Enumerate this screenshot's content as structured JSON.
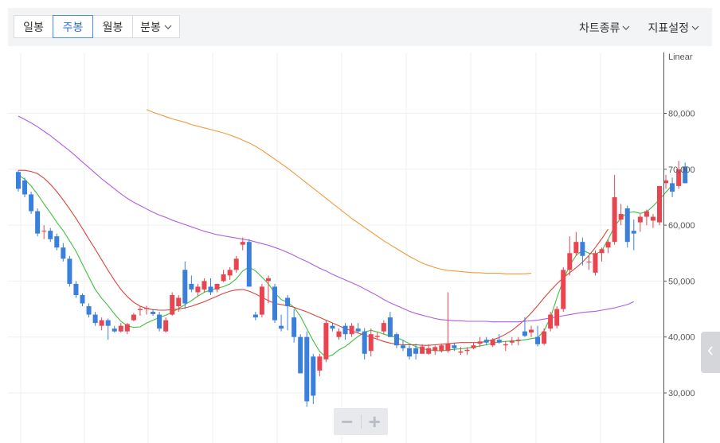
{
  "toolbar": {
    "tabs": [
      {
        "label": "일봉",
        "active": false
      },
      {
        "label": "주봉",
        "active": true
      },
      {
        "label": "월봉",
        "active": false
      },
      {
        "label": "분봉",
        "active": false,
        "dropdown": true
      }
    ],
    "menus": [
      {
        "label": "차트종류",
        "icon": "chevron-down-icon"
      },
      {
        "label": "지표설정",
        "icon": "chevron-down-icon"
      }
    ]
  },
  "zoom": {
    "minus_icon": "minus-icon",
    "plus_icon": "plus-icon"
  },
  "side_handle": {
    "icon": "chevron-left-icon"
  },
  "colors": {
    "up": "#e84550",
    "down": "#3a7fd9",
    "ma5": "#3fbf3f",
    "ma20": "#d9453b",
    "ma60": "#b05ce0",
    "ma120": "#ef9a3c",
    "grid": "#eef0f2",
    "axis": "#555555"
  },
  "chart_data": {
    "type": "candlestick",
    "scale_label": "Linear",
    "ylim": [
      25000,
      81000
    ],
    "yticks": [
      "30,000",
      "40,000",
      "50,000",
      "60,000",
      "70,000",
      "80,000"
    ],
    "ytick_values": [
      30000,
      40000,
      50000,
      60000,
      70000,
      80000
    ],
    "ohlc": [
      [
        69500,
        69800,
        66000,
        66500
      ],
      [
        68000,
        68500,
        65000,
        65500
      ],
      [
        65500,
        66000,
        62000,
        62500
      ],
      [
        62500,
        63000,
        58000,
        58500
      ],
      [
        59000,
        60000,
        57500,
        59000
      ],
      [
        59000,
        59500,
        57000,
        57500
      ],
      [
        58000,
        58500,
        55500,
        56000
      ],
      [
        56000,
        56800,
        53500,
        54000
      ],
      [
        54000,
        54500,
        49000,
        49500
      ],
      [
        49500,
        50000,
        47000,
        47500
      ],
      [
        47500,
        47800,
        45500,
        46000
      ],
      [
        45500,
        46000,
        43500,
        44000
      ],
      [
        44000,
        44500,
        42000,
        42500
      ],
      [
        42000,
        43500,
        41200,
        43000
      ],
      [
        43000,
        43300,
        39500,
        42000
      ],
      [
        41500,
        42000,
        40800,
        41000
      ],
      [
        41000,
        42500,
        40800,
        42000
      ],
      [
        41000,
        42500,
        40500,
        42300
      ],
      [
        43000,
        44300,
        42800,
        44000
      ],
      [
        44800,
        45500,
        43800,
        45000
      ],
      [
        45000,
        45600,
        44000,
        45200
      ],
      [
        44500,
        45000,
        43800,
        44100
      ],
      [
        44000,
        44500,
        41000,
        41500
      ],
      [
        41000,
        43500,
        40800,
        43000
      ],
      [
        44000,
        48000,
        43800,
        47500
      ],
      [
        45500,
        47500,
        44500,
        47000
      ],
      [
        52000,
        53500,
        45000,
        46000
      ],
      [
        49500,
        51000,
        48000,
        48500
      ],
      [
        48000,
        49500,
        47200,
        49000
      ],
      [
        48500,
        50500,
        48000,
        50000
      ],
      [
        49000,
        50500,
        47500,
        48000
      ],
      [
        48500,
        49500,
        48000,
        49500
      ],
      [
        50000,
        52000,
        49800,
        51200
      ],
      [
        51000,
        52500,
        50200,
        52000
      ],
      [
        52000,
        54500,
        51500,
        54000
      ],
      [
        56500,
        57800,
        55500,
        57000
      ],
      [
        57000,
        57500,
        49000,
        49000
      ],
      [
        44000,
        44500,
        43000,
        43500
      ],
      [
        44000,
        49500,
        43500,
        49000
      ],
      [
        50000,
        51000,
        46000,
        50500
      ],
      [
        49000,
        49500,
        42500,
        43000
      ],
      [
        42000,
        44000,
        41000,
        41500
      ],
      [
        47000,
        47500,
        41200,
        45500
      ],
      [
        43500,
        45000,
        39000,
        40000
      ],
      [
        40000,
        40500,
        33500,
        33500
      ],
      [
        40000,
        41000,
        27500,
        28500
      ],
      [
        36500,
        37000,
        28000,
        29500
      ],
      [
        34000,
        37000,
        33000,
        36500
      ],
      [
        36000,
        43000,
        35500,
        42500
      ],
      [
        42000,
        42500,
        41000,
        41500
      ],
      [
        40000,
        41500,
        39500,
        41000
      ],
      [
        42000,
        42500,
        39500,
        40500
      ],
      [
        40500,
        42500,
        40000,
        42000
      ],
      [
        41500,
        42500,
        40800,
        41000
      ],
      [
        41000,
        41600,
        36000,
        37000
      ],
      [
        37500,
        41500,
        36500,
        40500
      ],
      [
        40000,
        40800,
        39500,
        40200
      ],
      [
        41000,
        43000,
        40500,
        42500
      ],
      [
        43500,
        44500,
        40000,
        40000
      ],
      [
        40500,
        40800,
        38000,
        38500
      ],
      [
        38500,
        39500,
        37500,
        38000
      ],
      [
        38000,
        38500,
        36000,
        36500
      ],
      [
        38000,
        38800,
        36000,
        37000
      ],
      [
        37000,
        38700,
        37000,
        38300
      ],
      [
        37000,
        38700,
        36800,
        38000
      ],
      [
        37500,
        38500,
        36800,
        38200
      ],
      [
        37500,
        38800,
        37200,
        38500
      ],
      [
        37500,
        48000,
        37200,
        38800
      ],
      [
        38500,
        39000,
        37500,
        38000
      ],
      [
        37200,
        38200,
        36800,
        37400
      ],
      [
        37500,
        38200,
        36800,
        37700
      ],
      [
        38000,
        39000,
        37800,
        38500
      ],
      [
        38800,
        40000,
        38200,
        39200
      ],
      [
        39500,
        40000,
        38500,
        39000
      ],
      [
        38500,
        39800,
        38200,
        39500
      ],
      [
        39500,
        40500,
        38800,
        39000
      ],
      [
        38500,
        39300,
        37500,
        38700
      ],
      [
        39000,
        40000,
        38500,
        39300
      ],
      [
        39300,
        40000,
        38500,
        39500
      ],
      [
        41000,
        43500,
        40000,
        40200
      ],
      [
        40800,
        42000,
        40000,
        41300
      ],
      [
        40000,
        42000,
        38300,
        38700
      ],
      [
        38800,
        41500,
        38500,
        41000
      ],
      [
        41500,
        44500,
        41000,
        44000
      ],
      [
        42000,
        45500,
        41500,
        45000
      ],
      [
        45000,
        52500,
        44500,
        52000
      ],
      [
        52000,
        58000,
        51000,
        55000
      ],
      [
        55000,
        58800,
        54500,
        57000
      ],
      [
        57000,
        57800,
        52800,
        54500
      ],
      [
        53500,
        54500,
        52000,
        53500
      ],
      [
        51500,
        55500,
        51000,
        55000
      ],
      [
        55000,
        56000,
        53500,
        55700
      ],
      [
        56000,
        57500,
        55000,
        57000
      ],
      [
        57000,
        69000,
        56500,
        65000
      ],
      [
        61000,
        63800,
        60000,
        62000
      ],
      [
        63000,
        63500,
        56000,
        57000
      ],
      [
        59000,
        61000,
        55500,
        58500
      ],
      [
        60500,
        62000,
        58800,
        61500
      ],
      [
        61500,
        62800,
        60000,
        62500
      ],
      [
        60800,
        62000,
        59500,
        61500
      ],
      [
        60500,
        67000,
        60000,
        67000
      ],
      [
        67500,
        69000,
        66500,
        68000
      ],
      [
        67500,
        68500,
        65000,
        66000
      ],
      [
        67000,
        71500,
        66500,
        70000
      ],
      [
        70500,
        71200,
        67500,
        67500
      ]
    ],
    "ma": [
      {
        "period": 5,
        "color": "#3fbf3f",
        "values": [
          69000,
          68200,
          67000,
          65500,
          63800,
          62200,
          60500,
          59000,
          57200,
          55300,
          53000,
          50700,
          48500,
          46900,
          45600,
          44100,
          42800,
          42000,
          41700,
          41800,
          42500,
          43000,
          43500,
          43900,
          44400,
          45100,
          45800,
          46500,
          47300,
          48000,
          48400,
          48700,
          49000,
          49500,
          50400,
          51800,
          52500,
          51800,
          50700,
          49500,
          47900,
          46700,
          46200,
          45300,
          43700,
          41500,
          39300,
          37400,
          36400,
          36800,
          37700,
          38300,
          39200,
          40100,
          40900,
          41200,
          40900,
          40500,
          40200,
          39900,
          39400,
          38800,
          38300,
          37900,
          37700,
          37600,
          37500,
          37700,
          37800,
          37900,
          38000,
          38200,
          38400,
          38600,
          38900,
          39100,
          39200,
          39300,
          39300,
          39500,
          39700,
          39900,
          41100,
          43500,
          47000,
          50200,
          52800,
          54600,
          55500,
          55000,
          54800,
          55400,
          57500,
          59800,
          61300,
          62200,
          62400,
          62100,
          62400,
          63400,
          64600,
          65900,
          67200
        ]
      },
      {
        "period": 20,
        "color": "#d9453b",
        "values": [
          69800,
          69800,
          69600,
          69200,
          68400,
          67300,
          66000,
          64500,
          62900,
          61200,
          59400,
          57500,
          55700,
          53800,
          51900,
          50100,
          48500,
          47200,
          46200,
          45500,
          45100,
          44900,
          44800,
          44800,
          44900,
          45000,
          45200,
          45500,
          45900,
          46300,
          46800,
          47300,
          47800,
          48200,
          48400,
          48500,
          48200,
          47700,
          47100,
          46500,
          46000,
          45800,
          45600,
          45300,
          44900,
          44500,
          44000,
          43500,
          43000,
          42500,
          42000,
          41500,
          41100,
          40700,
          40300,
          40000,
          39600,
          39200,
          38900,
          38700,
          38600,
          38600,
          38600,
          38500,
          38500,
          38600,
          38700,
          38800,
          38900,
          39000,
          39000,
          39000,
          39000,
          39200,
          39500,
          39900,
          40500,
          41200,
          42100,
          43100,
          44300,
          45600,
          47000,
          48300,
          49500,
          50600,
          51500,
          52400,
          53400,
          54600,
          56000,
          57600,
          59300
        ]
      },
      {
        "period": 60,
        "color": "#b05ce0",
        "values": [
          79500,
          78900,
          78300,
          77600,
          76800,
          76000,
          75100,
          74200,
          73300,
          72300,
          71300,
          70300,
          69300,
          68300,
          67400,
          66500,
          65600,
          64800,
          64100,
          63500,
          62900,
          62300,
          61800,
          61400,
          60900,
          60500,
          60100,
          59700,
          59300,
          58900,
          58600,
          58300,
          58100,
          57900,
          57700,
          57500,
          57300,
          57000,
          56700,
          56400,
          56000,
          55600,
          55100,
          54600,
          54000,
          53500,
          52900,
          52300,
          51800,
          51200,
          50700,
          50200,
          49700,
          49200,
          48600,
          48000,
          47400,
          46700,
          46100,
          45600,
          45100,
          44600,
          44200,
          43900,
          43600,
          43300,
          43100,
          43000,
          42900,
          42900,
          42800,
          42800,
          42800,
          42800,
          42700,
          42700,
          42700,
          42700,
          42700,
          42800,
          42900,
          43000,
          43200,
          43400,
          43600,
          43800,
          44000,
          44200,
          44400,
          44500,
          44600,
          44800,
          45000,
          45200,
          45500,
          45800,
          46300
        ]
      },
      {
        "period": 120,
        "color": "#ef9a3c",
        "values": [
          80700,
          80200,
          79800,
          79400,
          79000,
          78700,
          78400,
          78000,
          77700,
          77400,
          77100,
          76800,
          76500,
          76100,
          75700,
          75200,
          74700,
          74100,
          73400,
          72600,
          71800,
          71000,
          70200,
          69300,
          68400,
          67500,
          66600,
          65700,
          64800,
          63900,
          63000,
          62100,
          61200,
          60400,
          59600,
          58800,
          58000,
          57200,
          56500,
          55800,
          55100,
          54400,
          53800,
          53200,
          52800,
          52400,
          52100,
          51900,
          51800,
          51700,
          51600,
          51500,
          51500,
          51400,
          51400,
          51400,
          51300,
          51300,
          51300,
          51300,
          51400
        ]
      }
    ]
  }
}
